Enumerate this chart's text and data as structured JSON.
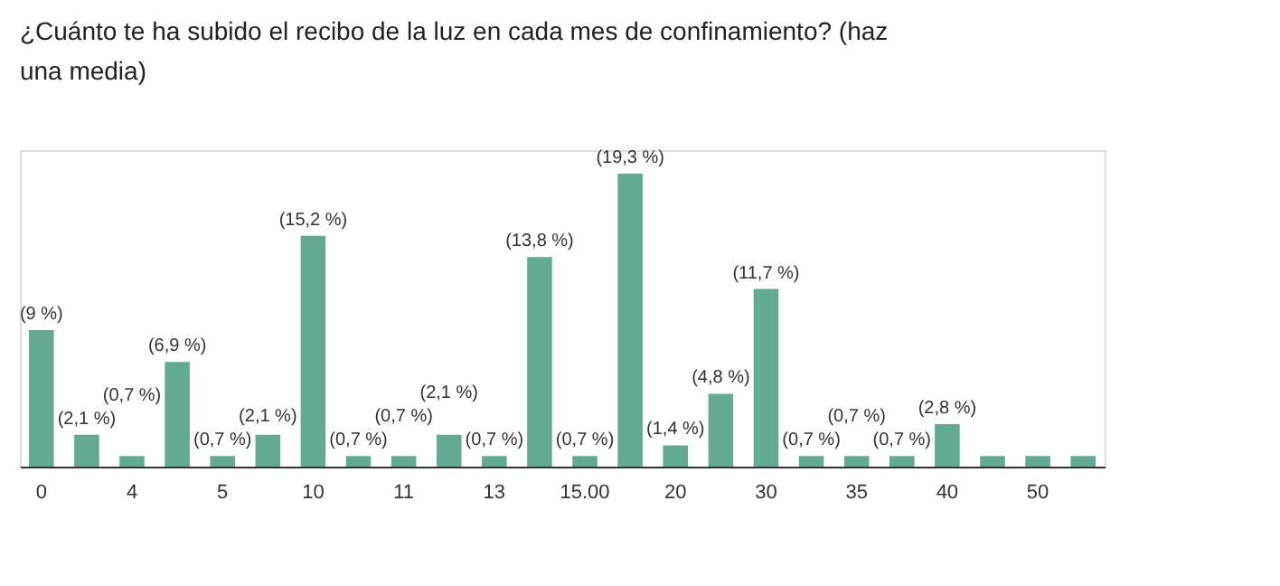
{
  "chart_data": {
    "type": "bar",
    "title": "¿Cuánto te ha subido el recibo de la luz en cada mes de confinamiento? (haz una media)",
    "categories": [
      "0",
      null,
      "4",
      null,
      "5",
      null,
      "10",
      null,
      "11",
      null,
      "13",
      null,
      "15.00",
      null,
      "20",
      null,
      "30",
      null,
      "35",
      null,
      "40",
      null,
      "50",
      null
    ],
    "values": [
      9,
      2.1,
      0.7,
      6.9,
      0.7,
      2.1,
      15.2,
      0.7,
      0.7,
      2.1,
      0.7,
      13.8,
      0.7,
      19.3,
      1.4,
      4.8,
      11.7,
      0.7,
      0.7,
      0.7,
      2.8,
      0.7,
      0.7,
      0.7
    ],
    "value_labels": [
      "(9 %)",
      "(2,1 %)",
      "(0,7 %)",
      "(6,9 %)",
      "(0,7 %)",
      "(2,1 %)",
      "(15,2 %)",
      "(0,7 %)",
      "(0,7 %)",
      "(2,1 %)",
      "(0,7 %)",
      "(13,8 %)",
      "(0,7 %)",
      "(19,3 %)",
      "(1,4 %)",
      "(4,8 %)",
      "(11,7 %)",
      "(0,7 %)",
      "(0,7 %)",
      "(0,7 %)",
      "(2,8 %)",
      null,
      null,
      null
    ],
    "color": "#63aa93",
    "tick_labels": "x"
  }
}
